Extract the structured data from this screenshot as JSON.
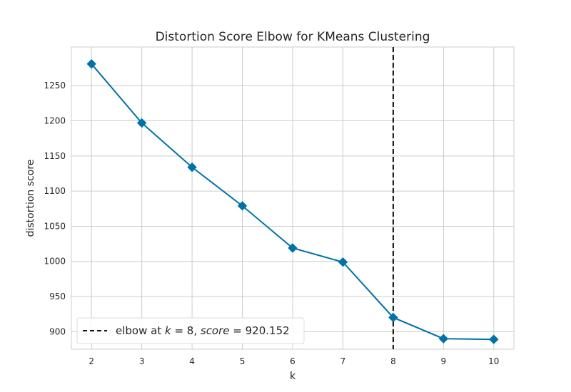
{
  "chart_data": {
    "type": "line",
    "title": "Distortion Score Elbow for KMeans Clustering",
    "xlabel": "k",
    "ylabel": "distortion score",
    "x": [
      2,
      3,
      4,
      5,
      6,
      7,
      8,
      9,
      10
    ],
    "series": [
      {
        "values": [
          1281,
          1197,
          1134,
          1079,
          1019,
          999,
          920.152,
          890,
          889
        ]
      }
    ],
    "xticks": [
      2,
      3,
      4,
      5,
      6,
      7,
      8,
      9,
      10
    ],
    "yticks": [
      900,
      950,
      1000,
      1050,
      1100,
      1150,
      1200,
      1250
    ],
    "xlim": [
      1.6,
      10.4
    ],
    "ylim": [
      875,
      1305
    ],
    "grid": true,
    "elbow": {
      "k": 8,
      "score": 920.152
    },
    "legend": {
      "placement": "bottom-left",
      "prefix": "elbow at ",
      "k_symbol": "k",
      "equals": " = ",
      "k_value": "8",
      "separator": ", ",
      "score_symbol": "score",
      "score_value": "920.152"
    },
    "colors": {
      "series": "#0072a8",
      "elbow_line": "#111111",
      "grid": "#cccccc",
      "axes": "#cccccc"
    }
  }
}
